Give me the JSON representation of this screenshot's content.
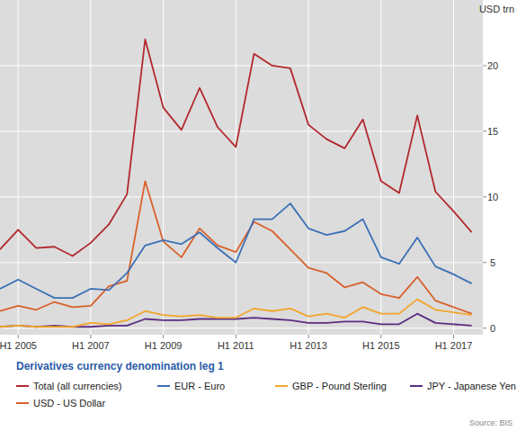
{
  "chart_data": {
    "type": "line",
    "title": "Derivatives currency denomination leg 1",
    "y_label": "USD trn",
    "source": "Source: BIS",
    "categories": [
      null,
      "H1 2005",
      null,
      null,
      null,
      "H1 2007",
      null,
      null,
      null,
      "H1 2009",
      null,
      null,
      null,
      "H1 2011",
      null,
      null,
      null,
      "H1 2013",
      null,
      null,
      null,
      "H1 2015",
      null,
      null,
      null,
      "H1 2017",
      null
    ],
    "series": [
      {
        "name": "Total (all currencies)",
        "color": "#b3282d",
        "values": [
          6.0,
          7.5,
          6.1,
          6.2,
          5.5,
          6.5,
          7.9,
          10.2,
          22.0,
          16.8,
          15.1,
          18.3,
          15.3,
          13.8,
          20.9,
          20.0,
          19.8,
          15.5,
          14.4,
          13.7,
          15.9,
          11.2,
          10.3,
          16.2,
          10.4,
          8.9,
          7.3
        ]
      },
      {
        "name": "EUR - Euro",
        "color": "#3b70b6",
        "values": [
          3.0,
          3.7,
          3.0,
          2.3,
          2.3,
          3.0,
          2.9,
          4.2,
          6.3,
          6.7,
          6.4,
          7.3,
          6.1,
          5.0,
          8.3,
          8.3,
          9.5,
          7.6,
          7.1,
          7.4,
          8.3,
          5.4,
          4.9,
          6.9,
          4.7,
          4.1,
          3.4
        ]
      },
      {
        "name": "GBP - Pound Sterling",
        "color": "#f2a52b",
        "values": [
          0.1,
          0.2,
          0.1,
          0.1,
          0.1,
          0.4,
          0.3,
          0.6,
          1.3,
          1.0,
          0.9,
          1.0,
          0.8,
          0.8,
          1.5,
          1.3,
          1.5,
          0.9,
          1.1,
          0.8,
          1.6,
          1.1,
          1.1,
          2.2,
          1.4,
          1.2,
          1.0
        ]
      },
      {
        "name": "JPY - Japanese Yen",
        "color": "#5b2d82",
        "values": [
          0.1,
          0.2,
          0.1,
          0.2,
          0.1,
          0.1,
          0.2,
          0.2,
          0.7,
          0.6,
          0.6,
          0.7,
          0.7,
          0.7,
          0.8,
          0.7,
          0.6,
          0.4,
          0.4,
          0.5,
          0.5,
          0.3,
          0.3,
          1.1,
          0.4,
          0.3,
          0.2
        ]
      },
      {
        "name": "USD - US Dollar",
        "color": "#d8612c",
        "values": [
          1.3,
          1.7,
          1.4,
          2.0,
          1.6,
          1.7,
          3.2,
          3.6,
          11.2,
          6.6,
          5.4,
          7.6,
          6.3,
          5.8,
          8.1,
          7.4,
          6.0,
          4.6,
          4.2,
          3.1,
          3.5,
          2.6,
          2.3,
          3.9,
          2.1,
          1.6,
          1.1
        ]
      }
    ],
    "ylim": [
      -0.5,
      25
    ],
    "yticks": [
      0,
      5,
      10,
      15,
      20
    ],
    "grid": true,
    "legend": "bottom"
  }
}
